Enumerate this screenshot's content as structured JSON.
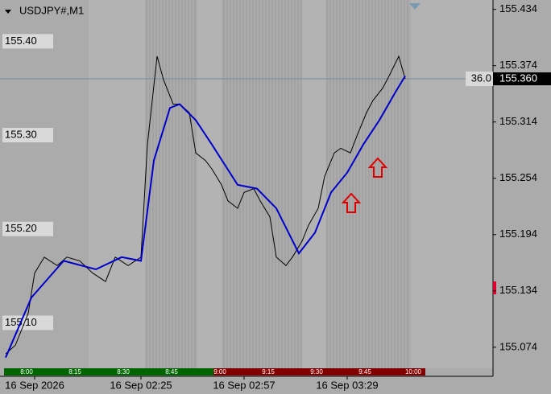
{
  "chart_data": {
    "type": "line",
    "title": "USDJPY#,M1",
    "xlim": [
      -0.75,
      152.25
    ],
    "ylim": [
      155.043,
      155.444
    ],
    "yticks": [
      155.434,
      155.374,
      155.314,
      155.254,
      155.194,
      155.134,
      155.074
    ],
    "xticks": [
      {
        "value": 10,
        "label": "16 Sep 2026"
      },
      {
        "value": 43,
        "label": "16 Sep 02:25"
      },
      {
        "value": 75,
        "label": "16 Sep 02:57"
      },
      {
        "value": 107,
        "label": "16 Sep 03:29"
      }
    ],
    "levels": [
      {
        "value": 155.4,
        "label": "155.40"
      },
      {
        "value": 155.3,
        "label": "155.30"
      },
      {
        "value": 155.2,
        "label": "155.20"
      },
      {
        "value": 155.1,
        "label": "155.10"
      }
    ],
    "current_price": {
      "value": 155.36,
      "label": "155.360"
    },
    "annotation": "36.0",
    "session_labels": [
      "8:00",
      "8:15",
      "8:30",
      "8:45",
      "9:00",
      "9:15",
      "9:30",
      "9:45",
      "10:00"
    ],
    "series": [
      {
        "color": "#000000",
        "x": [
          1,
          4,
          8,
          10,
          13,
          17,
          20,
          24,
          28,
          32,
          35,
          39,
          43,
          45,
          48,
          50,
          53,
          55,
          58,
          60,
          63,
          65,
          68,
          70,
          73,
          75,
          78,
          80,
          83,
          85,
          88,
          90,
          93,
          95,
          98,
          100,
          103,
          105,
          108,
          110,
          113,
          115,
          118,
          120,
          123,
          125
        ],
        "values": [
          155.067,
          155.076,
          155.11,
          155.153,
          155.17,
          155.161,
          155.17,
          155.166,
          155.153,
          155.144,
          155.17,
          155.161,
          155.17,
          155.29,
          155.384,
          155.359,
          155.333,
          155.333,
          155.324,
          155.281,
          155.273,
          155.264,
          155.247,
          155.23,
          155.222,
          155.239,
          155.243,
          155.23,
          155.213,
          155.17,
          155.161,
          155.17,
          155.187,
          155.204,
          155.222,
          155.256,
          155.281,
          155.286,
          155.281,
          155.299,
          155.324,
          155.337,
          155.35,
          155.363,
          155.384,
          155.36
        ]
      },
      {
        "color": "#0000cc",
        "x": [
          1,
          9,
          19,
          29,
          37,
          43,
          47,
          52,
          55,
          60,
          65,
          73,
          79,
          85,
          92,
          97,
          102,
          107,
          112,
          117,
          122,
          125
        ],
        "values": [
          155.063,
          155.127,
          155.166,
          155.157,
          155.17,
          155.166,
          155.273,
          155.329,
          155.333,
          155.316,
          155.29,
          155.247,
          155.243,
          155.222,
          155.174,
          155.196,
          155.239,
          155.26,
          155.29,
          155.316,
          155.346,
          155.363
        ]
      }
    ]
  }
}
